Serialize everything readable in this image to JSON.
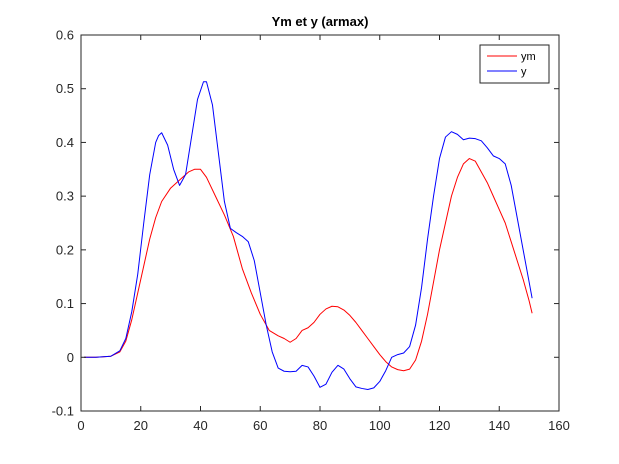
{
  "chart_data": {
    "type": "line",
    "title": "Ym et y (armax)",
    "xlabel": "",
    "ylabel": "",
    "xlim": [
      0,
      160
    ],
    "ylim": [
      -0.1,
      0.6
    ],
    "xticks": [
      0,
      20,
      40,
      60,
      80,
      100,
      120,
      140,
      160
    ],
    "yticks": [
      -0.1,
      0,
      0.1,
      0.2,
      0.3,
      0.4,
      0.5,
      0.6
    ],
    "xtick_labels": [
      "0",
      "20",
      "40",
      "60",
      "80",
      "100",
      "120",
      "140",
      "160"
    ],
    "ytick_labels": [
      "-0.1",
      "0",
      "0.1",
      "0.2",
      "0.3",
      "0.4",
      "0.5",
      "0.6"
    ],
    "grid": false,
    "legend_position": "top-right",
    "series": [
      {
        "name": "ym",
        "color": "#ff0000",
        "x": [
          1,
          5,
          10,
          13,
          15,
          17,
          19,
          21,
          23,
          25,
          27,
          30,
          33,
          36,
          38,
          40,
          42,
          45,
          48,
          51,
          54,
          57,
          60,
          63,
          66,
          68,
          70,
          72,
          74,
          76,
          78,
          80,
          82,
          84,
          86,
          88,
          90,
          92,
          94,
          96,
          98,
          100,
          102,
          104,
          106,
          108,
          110,
          112,
          114,
          116,
          118,
          120,
          122,
          124,
          126,
          128,
          130,
          132,
          134,
          136,
          138,
          140,
          142,
          144,
          146,
          148,
          150,
          151
        ],
        "y": [
          0,
          0,
          0.002,
          0.01,
          0.03,
          0.07,
          0.12,
          0.17,
          0.22,
          0.26,
          0.29,
          0.315,
          0.33,
          0.345,
          0.35,
          0.35,
          0.335,
          0.3,
          0.265,
          0.225,
          0.165,
          0.12,
          0.08,
          0.05,
          0.04,
          0.035,
          0.028,
          0.035,
          0.05,
          0.055,
          0.065,
          0.08,
          0.09,
          0.095,
          0.094,
          0.088,
          0.078,
          0.065,
          0.05,
          0.035,
          0.02,
          0.005,
          -0.008,
          -0.018,
          -0.023,
          -0.025,
          -0.022,
          -0.005,
          0.03,
          0.08,
          0.14,
          0.2,
          0.25,
          0.3,
          0.335,
          0.36,
          0.37,
          0.365,
          0.345,
          0.325,
          0.3,
          0.275,
          0.25,
          0.215,
          0.18,
          0.145,
          0.105,
          0.082
        ]
      },
      {
        "name": "y",
        "color": "#0000ff",
        "x": [
          1,
          5,
          10,
          13,
          15,
          17,
          19,
          21,
          23,
          25,
          26,
          27,
          29,
          31,
          33,
          35,
          37,
          39,
          41,
          42,
          44,
          46,
          48,
          50,
          52,
          54,
          56,
          58,
          60,
          62,
          64,
          66,
          68,
          70,
          72,
          74,
          76,
          78,
          80,
          82,
          84,
          86,
          88,
          90,
          92,
          94,
          96,
          98,
          100,
          102,
          104,
          106,
          108,
          110,
          112,
          114,
          116,
          118,
          120,
          122,
          124,
          126,
          128,
          130,
          132,
          134,
          136,
          138,
          140,
          142,
          144,
          146,
          148,
          150,
          151
        ],
        "y": [
          0,
          0,
          0.002,
          0.012,
          0.035,
          0.085,
          0.155,
          0.25,
          0.34,
          0.4,
          0.413,
          0.418,
          0.395,
          0.35,
          0.32,
          0.34,
          0.41,
          0.48,
          0.513,
          0.513,
          0.47,
          0.38,
          0.29,
          0.24,
          0.232,
          0.225,
          0.215,
          0.18,
          0.12,
          0.06,
          0.01,
          -0.02,
          -0.026,
          -0.027,
          -0.026,
          -0.015,
          -0.018,
          -0.035,
          -0.056,
          -0.05,
          -0.028,
          -0.015,
          -0.022,
          -0.04,
          -0.055,
          -0.058,
          -0.06,
          -0.057,
          -0.045,
          -0.025,
          0,
          0.005,
          0.008,
          0.02,
          0.06,
          0.13,
          0.22,
          0.3,
          0.37,
          0.41,
          0.42,
          0.415,
          0.405,
          0.408,
          0.407,
          0.403,
          0.39,
          0.375,
          0.37,
          0.36,
          0.32,
          0.26,
          0.2,
          0.14,
          0.11
        ]
      }
    ]
  }
}
